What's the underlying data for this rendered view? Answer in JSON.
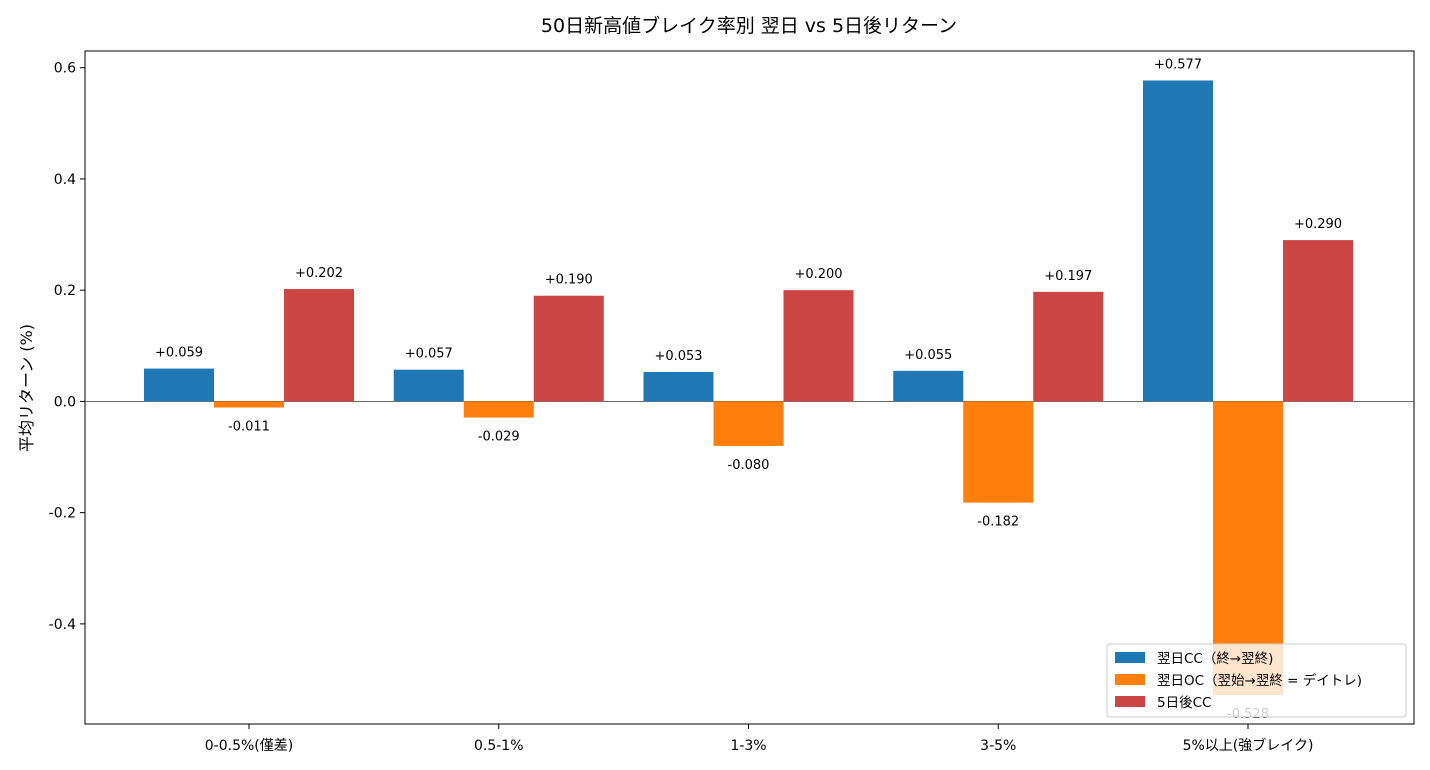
{
  "chart_data": {
    "type": "bar",
    "title": "50日新高値ブレイク率別 翌日 vs 5日後リターン",
    "xlabel": "",
    "ylabel": "平均リターン (%)",
    "categories": [
      "0-0.5%(僅差)",
      "0.5-1%",
      "1-3%",
      "3-5%",
      "5%以上(強ブレイク)"
    ],
    "ylim": [
      -0.58,
      0.63
    ],
    "yticks": [
      -0.4,
      -0.2,
      0.0,
      0.2,
      0.4,
      0.6
    ],
    "ytick_labels": [
      "-0.4",
      "-0.2",
      "0.0",
      "0.2",
      "0.4",
      "0.6"
    ],
    "zero_line": true,
    "grid": false,
    "legend_position": "lower-right",
    "series": [
      {
        "name": "翌日CC（終→翌終)",
        "color": "#1f77b4",
        "values": [
          0.059,
          0.057,
          0.053,
          0.055,
          0.577
        ],
        "labels": [
          "+0.059",
          "+0.057",
          "+0.053",
          "+0.055",
          "+0.577"
        ]
      },
      {
        "name": "翌日OC（翌始→翌終 = デイトレ)",
        "color": "#ff7f0e",
        "values": [
          -0.011,
          -0.029,
          -0.08,
          -0.182,
          -0.528
        ],
        "labels": [
          "-0.011",
          "-0.029",
          "-0.080",
          "-0.182",
          "-0.528"
        ]
      },
      {
        "name": "5日後CC",
        "color": "#cc4545",
        "values": [
          0.202,
          0.19,
          0.2,
          0.197,
          0.29
        ],
        "labels": [
          "+0.202",
          "+0.190",
          "+0.200",
          "+0.197",
          "+0.290"
        ]
      }
    ]
  }
}
